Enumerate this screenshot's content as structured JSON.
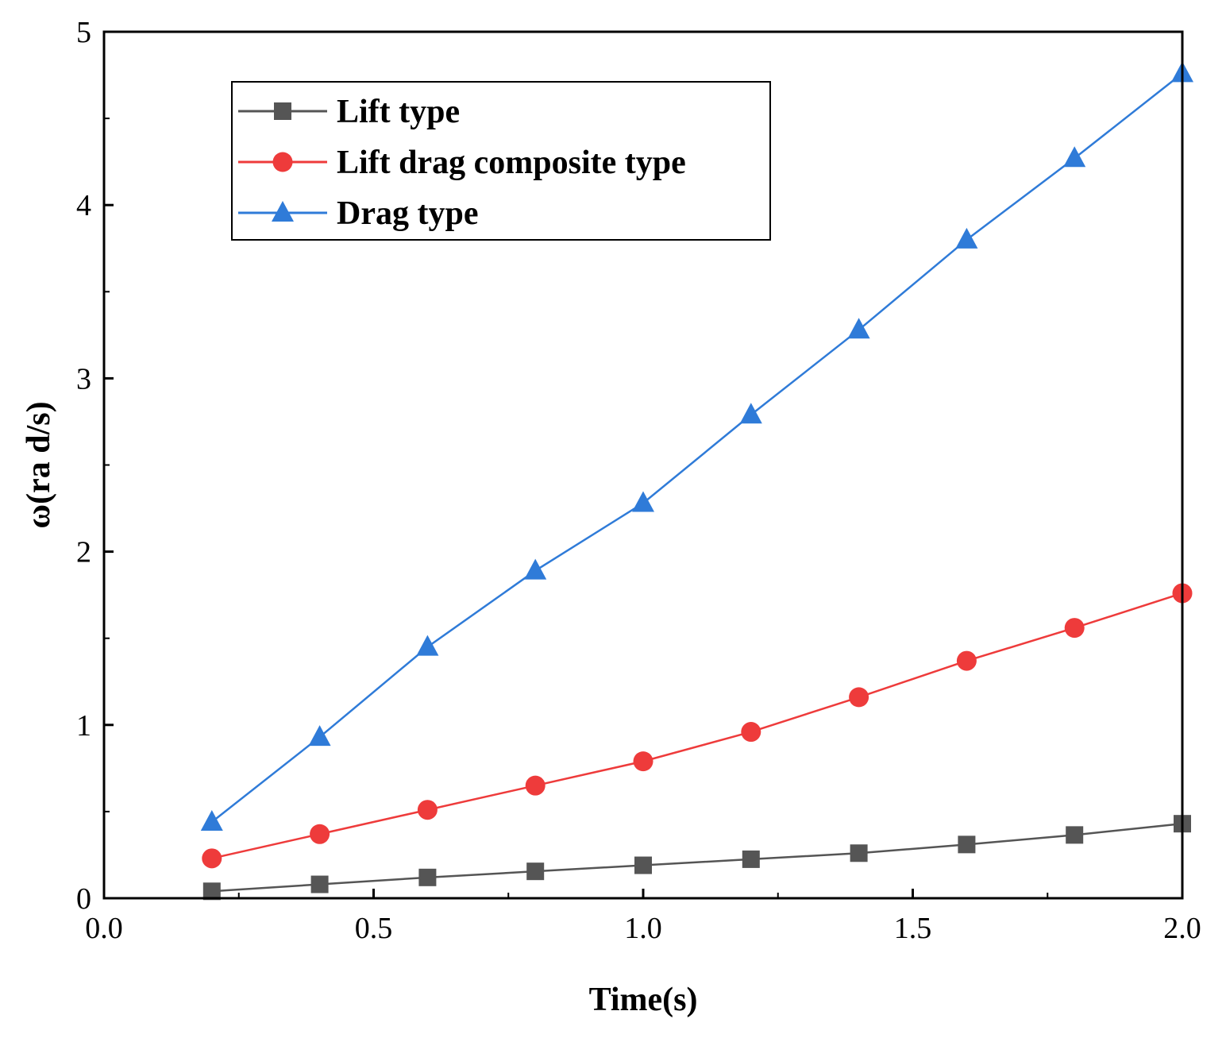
{
  "chart_data": {
    "type": "line",
    "title": "",
    "xlabel": "Time(s)",
    "ylabel": "ω(ra d/s)",
    "xlim": [
      0.0,
      2.0
    ],
    "ylim": [
      0,
      5
    ],
    "xticks": [
      "0.0",
      "0.5",
      "1.0",
      "1.5",
      "2.0"
    ],
    "xtick_values": [
      0.0,
      0.5,
      1.0,
      1.5,
      2.0
    ],
    "yticks": [
      "0",
      "1",
      "2",
      "3",
      "4",
      "5"
    ],
    "ytick_values": [
      0,
      1,
      2,
      3,
      4,
      5
    ],
    "x": [
      0.2,
      0.4,
      0.6,
      0.8,
      1.0,
      1.2,
      1.4,
      1.6,
      1.8,
      2.0
    ],
    "legend_position": "top-left",
    "series": [
      {
        "name": "Lift type",
        "color": "#555555",
        "marker": "square",
        "values": [
          0.04,
          0.08,
          0.12,
          0.155,
          0.19,
          0.225,
          0.26,
          0.31,
          0.365,
          0.43
        ]
      },
      {
        "name": "Lift drag composite type",
        "color": "#ee3b3b",
        "marker": "circle",
        "values": [
          0.23,
          0.37,
          0.51,
          0.65,
          0.79,
          0.96,
          1.16,
          1.37,
          1.56,
          1.76
        ]
      },
      {
        "name": "Drag type",
        "color": "#2f7bd8",
        "marker": "triangle",
        "values": [
          0.44,
          0.93,
          1.45,
          1.89,
          2.28,
          2.79,
          3.28,
          3.8,
          4.27,
          4.76
        ]
      }
    ]
  }
}
